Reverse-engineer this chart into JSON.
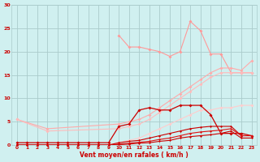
{
  "background_color": "#d0f0f0",
  "grid_color": "#aacccc",
  "text_color": "#cc0000",
  "xlabel": "Vent moyen/en rafales ( km/h )",
  "xlim": [
    -0.5,
    23.5
  ],
  "ylim": [
    0,
    30
  ],
  "xticks": [
    0,
    1,
    2,
    3,
    4,
    5,
    6,
    7,
    8,
    9,
    10,
    11,
    12,
    13,
    14,
    15,
    16,
    17,
    18,
    19,
    20,
    21,
    22,
    23
  ],
  "yticks": [
    0,
    5,
    10,
    15,
    20,
    25,
    30
  ],
  "series": [
    {
      "x": [
        10,
        11,
        12,
        13,
        14,
        15,
        16,
        17,
        18,
        19,
        20,
        21,
        22,
        23
      ],
      "y": [
        23.5,
        21.0,
        21.0,
        20.5,
        20.0,
        19.0,
        20.0,
        26.5,
        24.5,
        19.5,
        19.5,
        15.5,
        15.5,
        15.5
      ],
      "color": "#ff9999",
      "lw": 0.8,
      "marker": "D",
      "ms": 2.0
    },
    {
      "x": [
        0,
        3,
        10,
        11,
        12,
        13,
        14,
        15,
        16,
        17,
        18,
        19,
        20,
        21,
        22,
        23
      ],
      "y": [
        5.5,
        3.5,
        4.5,
        5.0,
        5.5,
        6.5,
        8.0,
        9.5,
        11.0,
        12.5,
        14.0,
        15.5,
        16.5,
        16.5,
        16.0,
        18.0
      ],
      "color": "#ffaaaa",
      "lw": 0.8,
      "marker": "D",
      "ms": 2.0
    },
    {
      "x": [
        0,
        3,
        10,
        11,
        12,
        13,
        14,
        15,
        16,
        17,
        18,
        19,
        20,
        21,
        22,
        23
      ],
      "y": [
        5.5,
        3.0,
        3.5,
        4.0,
        4.5,
        5.5,
        7.0,
        8.5,
        10.0,
        11.5,
        13.0,
        14.5,
        15.5,
        15.5,
        15.5,
        15.5
      ],
      "color": "#ffbbbb",
      "lw": 0.8,
      "marker": "D",
      "ms": 2.0
    },
    {
      "x": [
        0,
        3,
        5,
        7,
        9,
        10,
        11,
        12,
        13,
        14,
        15,
        16,
        17,
        18,
        19,
        20,
        21,
        22,
        23
      ],
      "y": [
        0,
        0,
        0,
        0,
        0,
        0.5,
        1.0,
        1.5,
        2.5,
        3.5,
        4.5,
        5.5,
        6.5,
        7.5,
        7.5,
        8.0,
        8.0,
        8.5,
        8.5
      ],
      "color": "#ffcccc",
      "lw": 0.8,
      "marker": "D",
      "ms": 2.0
    },
    {
      "x": [
        0,
        1,
        2,
        3,
        4,
        5,
        6,
        7,
        8,
        9,
        10,
        11,
        12,
        13,
        14,
        15,
        16,
        17,
        18,
        19,
        20,
        21,
        22,
        23
      ],
      "y": [
        0.5,
        0.5,
        0.5,
        0.5,
        0.5,
        0.5,
        0.5,
        0.5,
        0.5,
        0.5,
        4.0,
        4.5,
        7.5,
        8.0,
        7.5,
        7.5,
        8.5,
        8.5,
        8.5,
        6.5,
        2.5,
        2.5,
        2.5,
        2.0
      ],
      "color": "#cc0000",
      "lw": 0.9,
      "marker": "D",
      "ms": 2.0
    },
    {
      "x": [
        0,
        1,
        2,
        3,
        4,
        5,
        6,
        7,
        8,
        9,
        10,
        11,
        12,
        13,
        14,
        15,
        16,
        17,
        18,
        19,
        20,
        21,
        22,
        23
      ],
      "y": [
        0,
        0,
        0,
        0,
        0,
        0,
        0,
        0,
        0,
        0,
        0.5,
        0.8,
        1.0,
        1.5,
        2.0,
        2.5,
        3.0,
        3.5,
        3.8,
        4.0,
        4.0,
        4.0,
        2.0,
        2.0
      ],
      "color": "#cc0000",
      "lw": 0.8,
      "marker": "D",
      "ms": 1.5
    },
    {
      "x": [
        0,
        1,
        2,
        3,
        4,
        5,
        6,
        7,
        8,
        9,
        10,
        11,
        12,
        13,
        14,
        15,
        16,
        17,
        18,
        19,
        20,
        21,
        22,
        23
      ],
      "y": [
        0,
        0,
        0,
        0,
        0,
        0,
        0,
        0,
        0,
        0,
        0.2,
        0.4,
        0.6,
        0.8,
        1.2,
        1.5,
        2.0,
        2.5,
        2.8,
        3.0,
        3.2,
        3.5,
        2.0,
        2.0
      ],
      "color": "#dd1111",
      "lw": 0.8,
      "marker": "D",
      "ms": 1.5
    },
    {
      "x": [
        0,
        1,
        2,
        3,
        4,
        5,
        6,
        7,
        8,
        9,
        10,
        11,
        12,
        13,
        14,
        15,
        16,
        17,
        18,
        19,
        20,
        21,
        22,
        23
      ],
      "y": [
        0,
        0,
        0,
        0,
        0,
        0,
        0,
        0,
        0,
        0,
        0.1,
        0.2,
        0.4,
        0.5,
        0.8,
        1.0,
        1.5,
        1.8,
        2.0,
        2.2,
        2.5,
        3.0,
        1.5,
        1.5
      ],
      "color": "#cc0000",
      "lw": 0.8,
      "marker": "D",
      "ms": 1.5
    }
  ]
}
